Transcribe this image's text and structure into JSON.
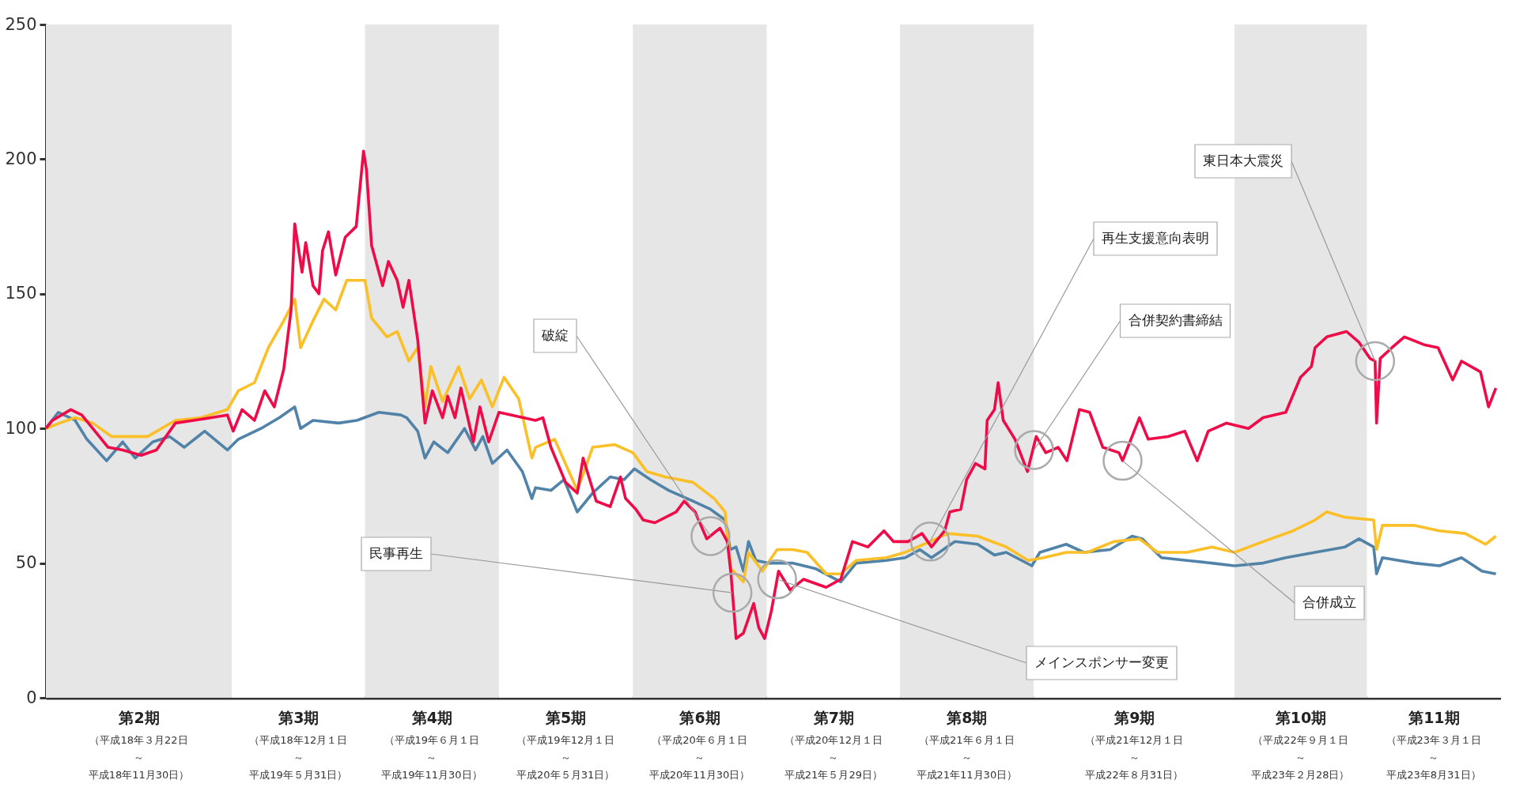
{
  "chart_data": {
    "type": "line",
    "xlim": [
      "2006-03-22",
      "2011-08-31"
    ],
    "ylim": [
      0,
      250
    ],
    "yticks": [
      0,
      50,
      100,
      150,
      200,
      250
    ],
    "grid": false,
    "xticks": [
      {
        "value": "2006-07-27",
        "label": "第2期"
      },
      {
        "value": "2007-03-02",
        "label": "第3期"
      },
      {
        "value": "2007-08-31",
        "label": "第4期"
      },
      {
        "value": "2008-03-01",
        "label": "第5期"
      },
      {
        "value": "2008-08-31",
        "label": "第6期"
      },
      {
        "value": "2009-03-02",
        "label": "第7期"
      },
      {
        "value": "2009-08-31",
        "label": "第8期"
      },
      {
        "value": "2010-04-17",
        "label": "第9期"
      },
      {
        "value": "2010-11-30",
        "label": "第10期"
      },
      {
        "value": "2011-05-31",
        "label": "第11期"
      }
    ],
    "line_style": "solid",
    "marker": "none",
    "series": [
      {
        "color": "#ef0a48",
        "x": [
          "2006-03-22",
          "2006-03-31",
          "2006-04-25",
          "2006-05-10",
          "2006-05-25",
          "2006-06-15",
          "2006-07-05",
          "2006-07-30",
          "2006-08-20",
          "2006-09-15",
          "2006-10-10",
          "2006-11-03",
          "2006-11-25",
          "2006-12-03",
          "2006-12-15",
          "2007-01-01",
          "2007-01-15",
          "2007-01-28",
          "2007-02-10",
          "2007-02-20",
          "2007-02-25",
          "2007-03-07",
          "2007-03-12",
          "2007-03-22",
          "2007-03-30",
          "2007-04-04",
          "2007-04-12",
          "2007-04-22",
          "2007-05-05",
          "2007-05-20",
          "2007-05-30",
          "2007-06-03",
          "2007-06-10",
          "2007-06-25",
          "2007-07-03",
          "2007-07-15",
          "2007-07-23",
          "2007-07-31",
          "2007-08-12",
          "2007-08-22",
          "2007-09-01",
          "2007-09-15",
          "2007-09-22",
          "2007-10-02",
          "2007-10-10",
          "2007-10-27",
          "2007-11-05",
          "2007-11-17",
          "2007-12-01",
          "2008-01-20",
          "2008-01-30",
          "2008-02-10",
          "2008-03-01",
          "2008-03-17",
          "2008-03-25",
          "2008-04-12",
          "2008-05-01",
          "2008-05-15",
          "2008-05-22",
          "2008-06-05",
          "2008-06-15",
          "2008-07-01",
          "2008-07-30",
          "2008-08-10",
          "2008-08-25",
          "2008-09-10",
          "2008-09-28",
          "2008-10-08",
          "2008-10-13",
          "2008-10-20",
          "2008-10-30",
          "2008-11-13",
          "2008-11-20",
          "2008-11-28",
          "2008-12-07",
          "2008-12-17",
          "2009-01-02",
          "2009-01-20",
          "2009-02-20",
          "2009-03-12",
          "2009-03-28",
          "2009-04-18",
          "2009-05-10",
          "2009-05-23",
          "2009-06-12",
          "2009-07-01",
          "2009-07-14",
          "2009-08-01",
          "2009-08-08",
          "2009-08-23",
          "2009-08-31",
          "2009-09-12",
          "2009-09-25",
          "2009-09-28",
          "2009-10-08",
          "2009-10-13",
          "2009-10-20",
          "2009-11-05",
          "2009-11-22",
          "2009-12-04",
          "2009-12-17",
          "2010-01-03",
          "2010-01-15",
          "2010-02-01",
          "2010-02-15",
          "2010-03-05",
          "2010-03-27",
          "2010-04-01",
          "2010-04-24",
          "2010-05-06",
          "2010-06-02",
          "2010-06-25",
          "2010-07-12",
          "2010-07-27",
          "2010-08-21",
          "2010-09-20",
          "2010-10-10",
          "2010-11-10",
          "2010-11-30",
          "2010-12-15",
          "2010-12-20",
          "2011-01-05",
          "2011-02-01",
          "2011-02-18",
          "2011-03-05",
          "2011-03-12",
          "2011-03-14",
          "2011-03-19",
          "2011-04-04",
          "2011-04-21",
          "2011-05-19",
          "2011-06-06",
          "2011-06-26",
          "2011-07-08",
          "2011-08-03",
          "2011-08-14",
          "2011-08-24"
        ],
        "values": [
          100,
          103,
          107,
          105,
          100,
          93,
          92,
          90,
          92,
          102,
          103,
          104,
          105,
          99,
          107,
          103,
          114,
          108,
          122,
          144,
          176,
          158,
          169,
          153,
          150,
          166,
          173,
          157,
          171,
          175,
          203,
          196,
          168,
          153,
          162,
          155,
          145,
          155,
          133,
          102,
          114,
          104,
          112,
          104,
          115,
          95,
          108,
          95,
          106,
          103,
          104,
          93,
          80,
          76,
          89,
          73,
          71,
          82,
          74,
          70,
          66,
          65,
          69,
          73,
          69,
          59,
          63,
          58,
          46,
          22,
          24,
          35,
          26,
          22,
          32,
          47,
          40,
          44,
          41,
          44,
          58,
          56,
          62,
          58,
          58,
          61,
          56,
          62,
          69,
          70,
          81,
          87,
          85,
          103,
          107,
          117,
          103,
          96,
          84,
          97,
          91,
          93,
          88,
          107,
          106,
          93,
          91,
          88,
          104,
          96,
          97,
          99,
          88,
          99,
          102,
          100,
          104,
          106,
          119,
          123,
          130,
          134,
          136,
          132,
          126,
          125,
          102,
          126,
          130,
          134,
          131,
          130,
          118,
          125,
          121,
          108,
          115
        ]
      },
      {
        "color": "#fbbf27",
        "x": [
          "2006-03-22",
          "2006-04-10",
          "2006-05-01",
          "2006-05-25",
          "2006-06-20",
          "2006-07-10",
          "2006-08-08",
          "2006-09-15",
          "2006-10-20",
          "2006-11-25",
          "2006-12-10",
          "2007-01-01",
          "2007-01-20",
          "2007-02-10",
          "2007-02-25",
          "2007-03-05",
          "2007-03-22",
          "2007-04-06",
          "2007-04-22",
          "2007-05-07",
          "2007-06-01",
          "2007-06-10",
          "2007-07-01",
          "2007-07-15",
          "2007-07-31",
          "2007-08-12",
          "2007-08-22",
          "2007-08-30",
          "2007-09-15",
          "2007-10-07",
          "2007-10-22",
          "2007-11-07",
          "2007-11-22",
          "2007-12-08",
          "2007-12-28",
          "2008-01-15",
          "2008-01-20",
          "2008-02-15",
          "2008-03-17",
          "2008-04-07",
          "2008-05-07",
          "2008-06-01",
          "2008-06-20",
          "2008-07-15",
          "2008-08-22",
          "2008-09-20",
          "2008-10-05",
          "2008-10-13",
          "2008-10-30",
          "2008-11-06",
          "2008-11-25",
          "2008-12-15",
          "2009-01-05",
          "2009-01-25",
          "2009-02-20",
          "2009-03-12",
          "2009-04-02",
          "2009-05-13",
          "2009-06-08",
          "2009-07-12",
          "2009-08-05",
          "2009-09-15",
          "2009-10-24",
          "2009-11-23",
          "2009-12-14",
          "2010-01-14",
          "2010-02-12",
          "2010-03-20",
          "2010-04-24",
          "2010-05-19",
          "2010-06-28",
          "2010-08-01",
          "2010-09-01",
          "2010-10-10",
          "2010-11-20",
          "2010-12-20",
          "2011-01-05",
          "2011-01-30",
          "2011-03-10",
          "2011-03-14",
          "2011-03-22",
          "2011-05-05",
          "2011-06-08",
          "2011-07-13",
          "2011-08-10",
          "2011-08-24"
        ],
        "values": [
          100,
          102,
          104,
          102,
          97,
          97,
          97,
          103,
          104,
          107,
          114,
          117,
          130,
          140,
          148,
          130,
          140,
          148,
          144,
          155,
          155,
          141,
          134,
          136,
          125,
          130,
          108,
          123,
          110,
          123,
          111,
          118,
          108,
          119,
          111,
          89,
          93,
          96,
          77,
          93,
          94,
          91,
          84,
          82,
          80,
          74,
          69,
          48,
          43,
          54,
          47,
          55,
          55,
          54,
          46,
          46,
          51,
          52,
          54,
          58,
          61,
          60,
          56,
          51,
          52,
          54,
          54,
          58,
          59,
          54,
          54,
          56,
          54,
          58,
          62,
          66,
          69,
          67,
          66,
          55,
          64,
          64,
          62,
          61,
          57,
          60
        ]
      },
      {
        "color": "#5183a8",
        "x": [
          "2006-03-22",
          "2006-04-08",
          "2006-05-01",
          "2006-05-17",
          "2006-06-13",
          "2006-07-05",
          "2006-07-22",
          "2006-08-15",
          "2006-09-07",
          "2006-09-27",
          "2006-10-25",
          "2006-11-25",
          "2006-12-10",
          "2007-01-10",
          "2007-02-04",
          "2007-02-25",
          "2007-03-05",
          "2007-03-22",
          "2007-04-26",
          "2007-05-21",
          "2007-06-20",
          "2007-07-20",
          "2007-07-28",
          "2007-08-12",
          "2007-08-22",
          "2007-09-03",
          "2007-09-22",
          "2007-10-15",
          "2007-10-30",
          "2007-11-09",
          "2007-11-22",
          "2007-12-12",
          "2008-01-02",
          "2008-01-15",
          "2008-01-20",
          "2008-02-10",
          "2008-02-28",
          "2008-03-17",
          "2008-04-07",
          "2008-05-01",
          "2008-05-20",
          "2008-06-03",
          "2008-06-25",
          "2008-07-20",
          "2008-08-22",
          "2008-09-15",
          "2008-10-05",
          "2008-10-12",
          "2008-10-20",
          "2008-10-30",
          "2008-11-06",
          "2008-11-16",
          "2008-12-03",
          "2009-01-05",
          "2009-02-05",
          "2009-03-12",
          "2009-04-02",
          "2009-05-13",
          "2009-06-08",
          "2009-06-28",
          "2009-07-14",
          "2009-08-15",
          "2009-09-15",
          "2009-10-08",
          "2009-10-24",
          "2009-11-28",
          "2009-12-09",
          "2010-01-14",
          "2010-02-07",
          "2010-03-15",
          "2010-04-14",
          "2010-04-28",
          "2010-05-24",
          "2010-06-28",
          "2010-08-01",
          "2010-09-01",
          "2010-10-10",
          "2010-11-10",
          "2010-12-20",
          "2011-01-30",
          "2011-02-18",
          "2011-03-10",
          "2011-03-14",
          "2011-03-22",
          "2011-05-05",
          "2011-06-08",
          "2011-07-08",
          "2011-08-05",
          "2011-08-24"
        ],
        "values": [
          100,
          106,
          103,
          96,
          88,
          95,
          89,
          95,
          97,
          93,
          99,
          92,
          96,
          100,
          104,
          108,
          100,
          103,
          102,
          103,
          106,
          105,
          104,
          99,
          89,
          95,
          91,
          100,
          92,
          97,
          87,
          92,
          84,
          74,
          78,
          77,
          81,
          69,
          76,
          82,
          81,
          85,
          81,
          77,
          73,
          70,
          66,
          55,
          56,
          47,
          58,
          51,
          50,
          50,
          48,
          43,
          50,
          51,
          52,
          55,
          52,
          58,
          57,
          53,
          54,
          49,
          54,
          57,
          54,
          55,
          60,
          59,
          52,
          51,
          50,
          49,
          50,
          52,
          54,
          56,
          59,
          56,
          46,
          52,
          50,
          49,
          52,
          47,
          46
        ]
      }
    ],
    "bands": [
      {
        "axis": "x",
        "from": "2006-03-22",
        "to": "2006-12-01",
        "color": "#e6e6e6"
      },
      {
        "axis": "x",
        "from": "2006-12-01",
        "to": "2007-06-01",
        "color": "#ffffff"
      },
      {
        "axis": "x",
        "from": "2007-06-01",
        "to": "2007-12-01",
        "color": "#e6e6e6"
      },
      {
        "axis": "x",
        "from": "2007-12-01",
        "to": "2008-06-01",
        "color": "#ffffff"
      },
      {
        "axis": "x",
        "from": "2008-06-01",
        "to": "2008-12-01",
        "color": "#e6e6e6"
      },
      {
        "axis": "x",
        "from": "2008-12-01",
        "to": "2009-06-01",
        "color": "#ffffff"
      },
      {
        "axis": "x",
        "from": "2009-06-01",
        "to": "2009-12-01",
        "color": "#e6e6e6"
      },
      {
        "axis": "x",
        "from": "2009-12-01",
        "to": "2010-09-01",
        "color": "#ffffff"
      },
      {
        "axis": "x",
        "from": "2010-09-01",
        "to": "2011-03-01",
        "color": "#e6e6e6"
      },
      {
        "axis": "x",
        "from": "2011-03-01",
        "to": "2011-08-31",
        "color": "#ffffff"
      }
    ],
    "annotations": [
      {
        "text": "破綻",
        "x": "2008-09-15",
        "y": 60
      },
      {
        "text": "民事再生",
        "x": "2008-10-15",
        "y": 39
      },
      {
        "text": "メインスポンサー変更",
        "x": "2008-12-15",
        "y": 44
      },
      {
        "text": "再生支援意向表明",
        "x": "2009-07-12",
        "y": 58
      },
      {
        "text": "合併契約書締結",
        "x": "2009-12-01",
        "y": 92
      },
      {
        "text": "合併成立",
        "x": "2010-04-01",
        "y": 88
      },
      {
        "text": "東日本大震災",
        "x": "2011-03-12",
        "y": 125
      },
      "（平成18年３月22日～平成18年11月30日）",
      "（平成18年12月１日～平成19年５月31日）",
      "（平成19年６月１日～平成19年11月30日）",
      "（平成19年12月１日～平成20年５月31日）",
      "（平成20年６月１日～平成20年11月30日）",
      "（平成20年12月１日～平成21年５月29日）",
      "（平成21年６月１日～平成21年11月30日）",
      "（平成21年12月１日～平成22年８月31日）",
      "（平成22年９月１日～平成23年２月28日）",
      "（平成23年３月１日～平成23年8月31日）"
    ]
  }
}
